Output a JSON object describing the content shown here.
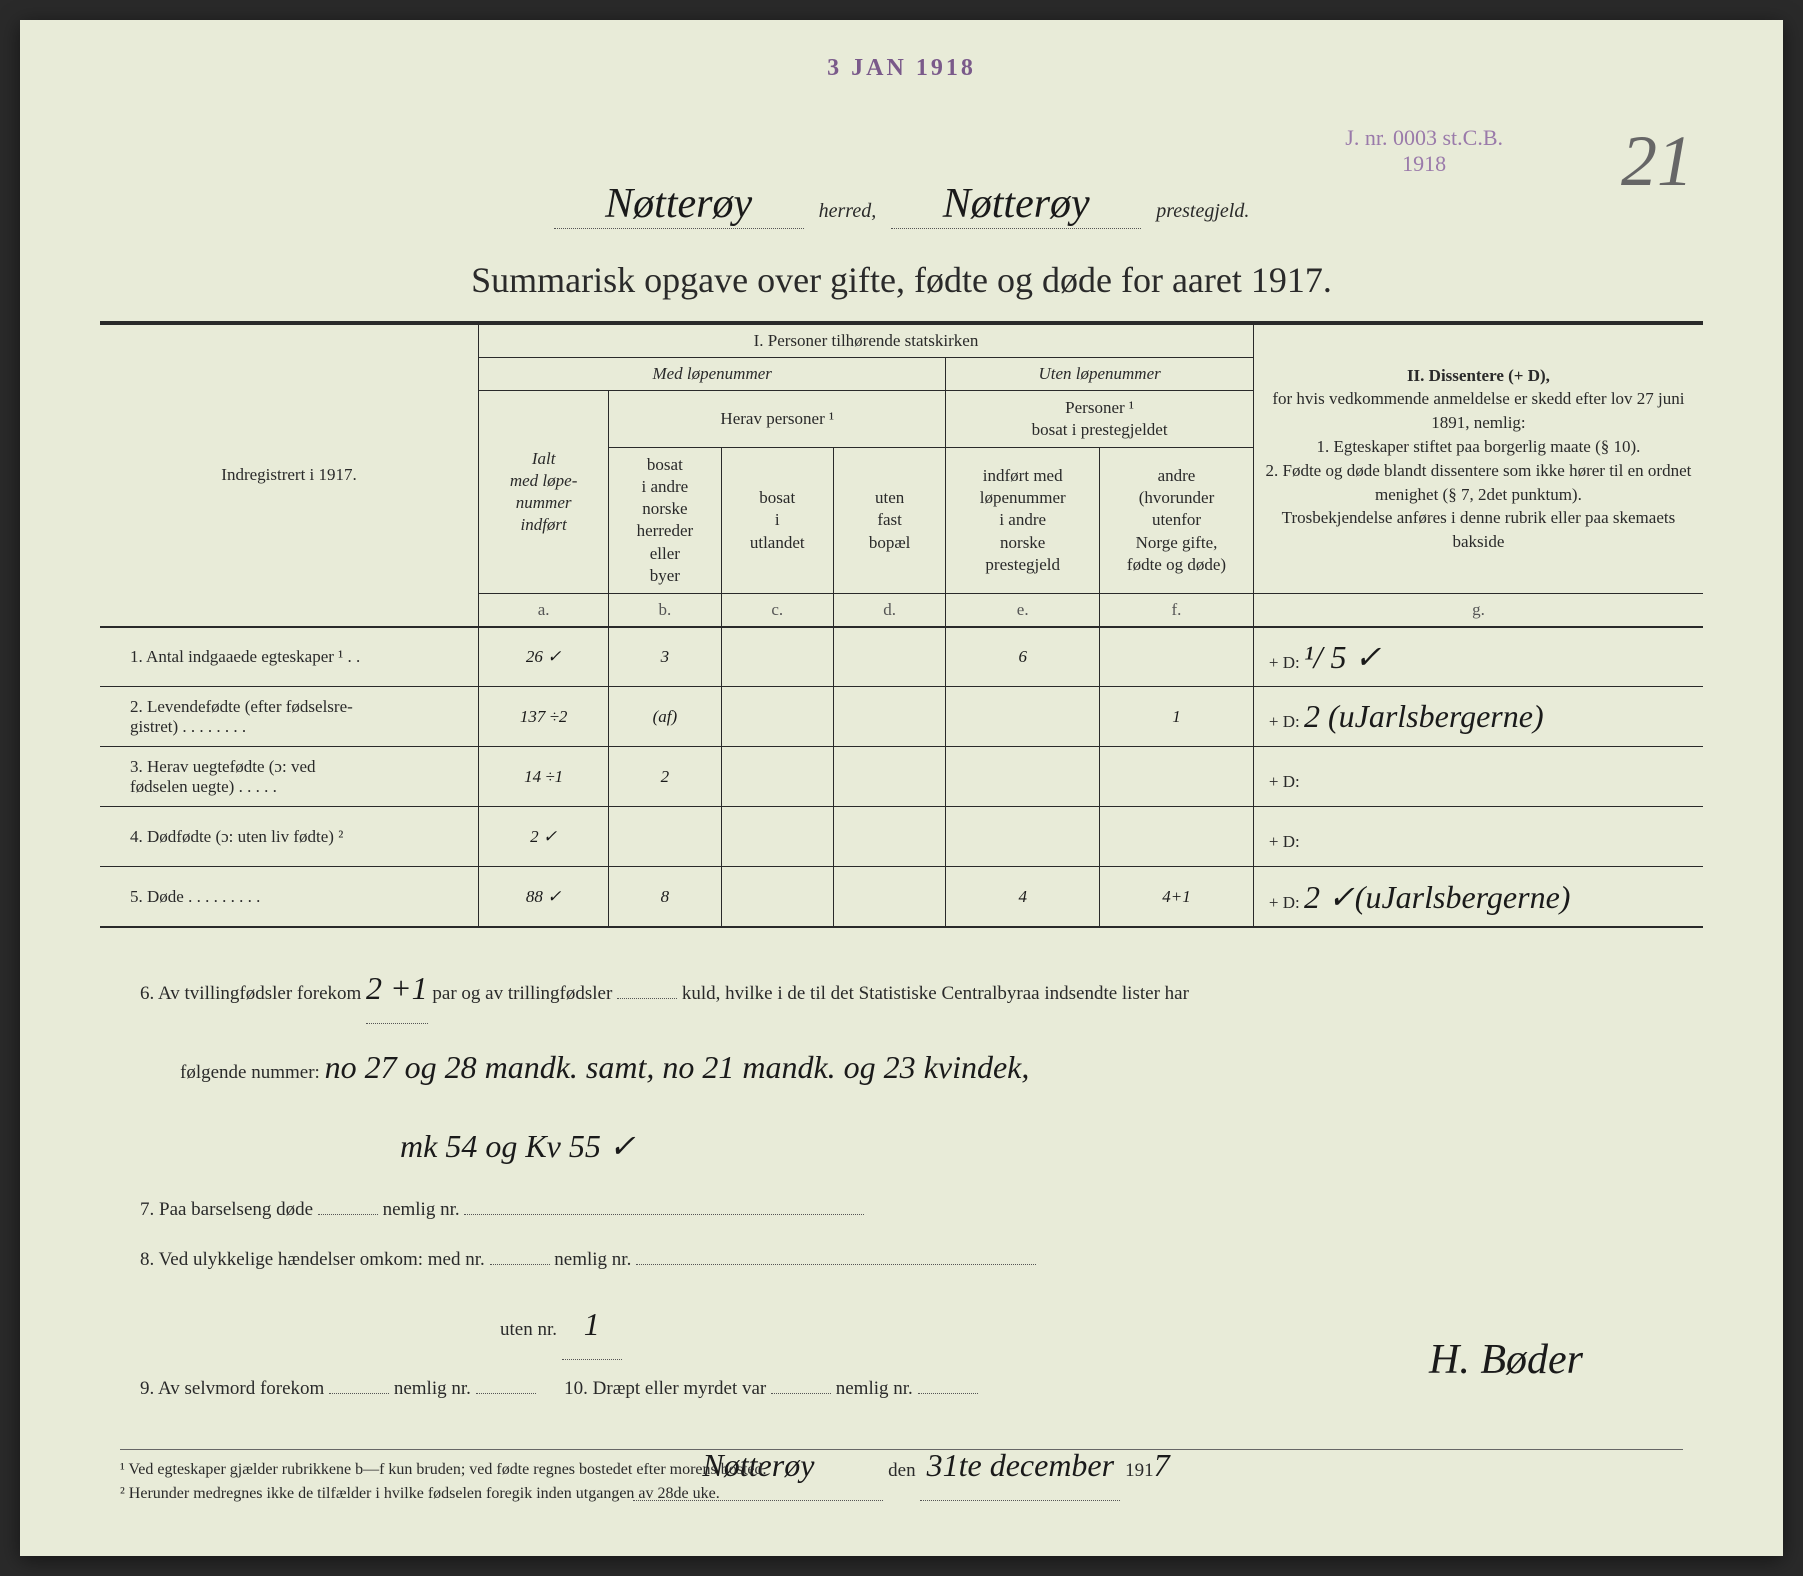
{
  "stamps": {
    "date": "3 JAN 1918",
    "jnr_line1": "J. nr. 0003 st.C.B.",
    "jnr_line2": "1918"
  },
  "page_number": "21",
  "header": {
    "herred_value": "Nøtterøy",
    "herred_label": "herred,",
    "prestegjeld_value": "Nøtterøy",
    "prestegjeld_label": "prestegjeld."
  },
  "title": "Summarisk opgave over gifte, fødte og døde for aaret 1917.",
  "table": {
    "section1_title": "I. Personer tilhørende statskirken",
    "med_lopenummer": "Med løpenummer",
    "uten_lopenummer": "Uten løpenummer",
    "indregistrert": "Indregistrert i 1917.",
    "herav_personer": "Herav personer ¹",
    "personer_bosat": "Personer ¹\nbosat i prestegjeldet",
    "col_a": "Ialt\nmed løpe-\nnummer\nindført",
    "col_b": "bosat\ni andre\nnorske\nherreder\neller\nbyer",
    "col_c": "bosat\ni\nutlandet",
    "col_d": "uten\nfast\nbopæl",
    "col_e": "indført med\nløpenummer\ni andre\nnorske\nprestegjeld",
    "col_f": "andre\n(hvorunder\nutenfor\nNorge gifte,\nfødte og døde)",
    "letters": {
      "a": "a.",
      "b": "b.",
      "c": "c.",
      "d": "d.",
      "e": "e.",
      "f": "f.",
      "g": "g."
    },
    "section2_title": "II. Dissentere (+ D),",
    "dissenter_text": "for hvis vedkommende anmeldelse er skedd efter lov 27 juni 1891, nemlig:\n1. Egteskaper stiftet paa borgerlig maate (§ 10).\n2. Fødte og døde blandt dissentere som ikke hører til en ordnet menighet (§ 7, 2det punktum).\nTrosbekjendelse anføres i denne rubrik eller paa skemaets bakside",
    "rows": [
      {
        "num": "1.",
        "label": "Antal indgaaede egteskaper ¹ . .",
        "a": "26 ✓",
        "b": "3",
        "c": "",
        "d": "",
        "e": "6",
        "f": "",
        "g": "+ D:    ¹/ 5 ✓"
      },
      {
        "num": "2.",
        "label": "Levendefødte (efter fødselsre-\ngistret)  .  .  .  .  .  .  .  .",
        "a": "137 ÷2",
        "b": "(af)",
        "c": "",
        "d": "",
        "e": "",
        "f": "1",
        "g": "+ D:    2 (uJarlsbergerne)"
      },
      {
        "num": "3.",
        "label": "Herav uegtefødte (ɔ: ved\nfødselen uegte)  .  .  .  .  .",
        "a": "14 ÷1",
        "b": "2",
        "c": "",
        "d": "",
        "e": "",
        "f": "",
        "g": "+ D:"
      },
      {
        "num": "4.",
        "label": "Dødfødte (ɔ: uten liv fødte) ²",
        "a": "2 ✓",
        "b": "",
        "c": "",
        "d": "",
        "e": "",
        "f": "",
        "g": "+ D:"
      },
      {
        "num": "5.",
        "label": "Døde  .  .  .  .  .  .  .  .  .",
        "a": "88 ✓",
        "b": "8",
        "c": "",
        "d": "",
        "e": "4",
        "f": "4+1",
        "g": "+ D:    2 ✓(uJarlsbergerne)"
      }
    ]
  },
  "notes": {
    "n6_pre": "6.  Av tvillingfødsler forekom",
    "n6_val1": "2 +1",
    "n6_mid1": "par og av trillingfødsler",
    "n6_val2": "",
    "n6_mid2": "kuld, hvilke i de til det Statistiske Centralbyraa indsendte lister har",
    "n6_line2_pre": "følgende nummer:",
    "n6_line2_val": "no 27 og 28 mandk. samt, no 21 mandk. og 23 kvindek,",
    "n6_line3": "mk 54 og Kv 55 ✓",
    "n7": "7.  Paa barselseng døde",
    "n7_mid": "nemlig nr.",
    "n8": "8.  Ved ulykkelige hændelser omkom:  med nr.",
    "n8_mid": "nemlig nr.",
    "n8b": "uten nr.",
    "n8b_val": "1",
    "n9": "9.  Av selvmord forekom",
    "n9_mid": "nemlig nr.",
    "n10": "10.  Dræpt eller myrdet var",
    "n10_mid": "nemlig nr.",
    "place": "Nøtterøy",
    "den": "den",
    "date_val": "31te december",
    "year_pre": "191",
    "year_suf": "7",
    "signature": "H. Bøder"
  },
  "footnotes": {
    "f1": "¹ Ved egteskaper gjælder rubrikkene b—f kun bruden; ved fødte regnes bostedet efter morens bosted.",
    "f2": "² Herunder medregnes ikke de tilfælder i hvilke fødselen foregik inden utgangen av 28de uke."
  },
  "colors": {
    "paper": "#e8ebd8",
    "ink": "#2a2a2a",
    "stamp": "#7a5a8a",
    "pencil": "#666666"
  }
}
